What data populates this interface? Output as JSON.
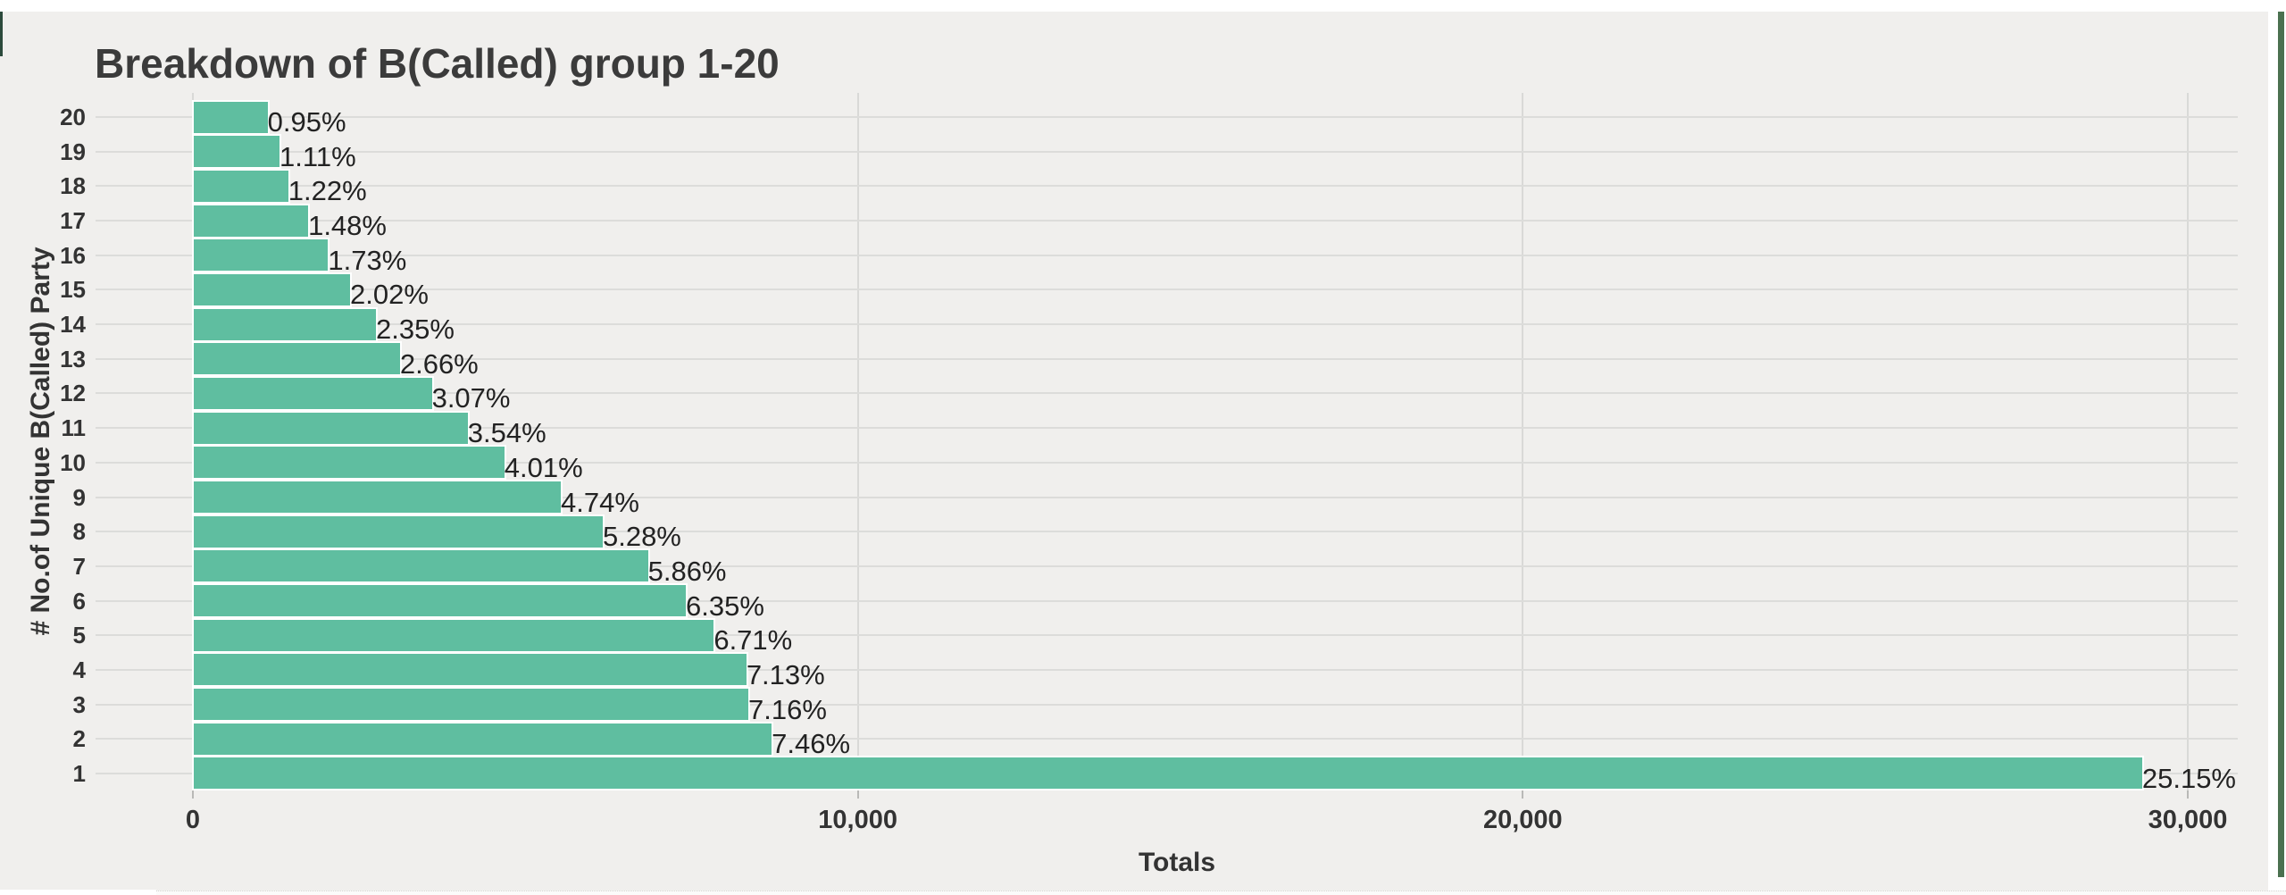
{
  "page": {
    "background_color": "#f0efed",
    "top_strip_color": "#ffffff",
    "right_border_color": "#4b7150",
    "left_sliver_color": "#2c4a3c",
    "bottom_strip_color": "#fbfbfa"
  },
  "chart": {
    "bar_color": "#5fbea0",
    "bar_edge_color": "#ffffff",
    "grid_color": "#dcdcda",
    "title_color": "#3b3b3b",
    "text_color": "#333333",
    "label_color": "#222222"
  },
  "chart_data": {
    "type": "bar",
    "orientation": "horizontal",
    "title": "Breakdown of B(Called) group 1-20",
    "xlabel": "Totals",
    "ylabel": "# No.of Unique B(Called) Party",
    "categories": [
      "20",
      "19",
      "18",
      "17",
      "16",
      "15",
      "14",
      "13",
      "12",
      "11",
      "10",
      "9",
      "8",
      "7",
      "6",
      "5",
      "4",
      "3",
      "2",
      "1"
    ],
    "values": [
      1110,
      1290,
      1420,
      1720,
      2020,
      2350,
      2740,
      3100,
      3580,
      4120,
      4670,
      5520,
      6150,
      6830,
      7400,
      7820,
      8310,
      8340,
      8690,
      29300
    ],
    "labels": [
      "0.95%",
      "1.11%",
      "1.22%",
      "1.48%",
      "1.73%",
      "2.02%",
      "2.35%",
      "2.66%",
      "3.07%",
      "3.54%",
      "4.01%",
      "4.74%",
      "5.28%",
      "5.86%",
      "6.35%",
      "6.71%",
      "7.13%",
      "7.16%",
      "7.46%",
      "25.15%"
    ],
    "x_ticks": [
      0,
      10000,
      20000,
      30000
    ],
    "x_tick_labels": [
      "0",
      "10,000",
      "20,000",
      "30,000"
    ],
    "xlim": [
      -1500,
      31200
    ],
    "grid": true,
    "legend": false,
    "values_note": "absolute Totals estimated from axis; bar text shows percentages"
  }
}
